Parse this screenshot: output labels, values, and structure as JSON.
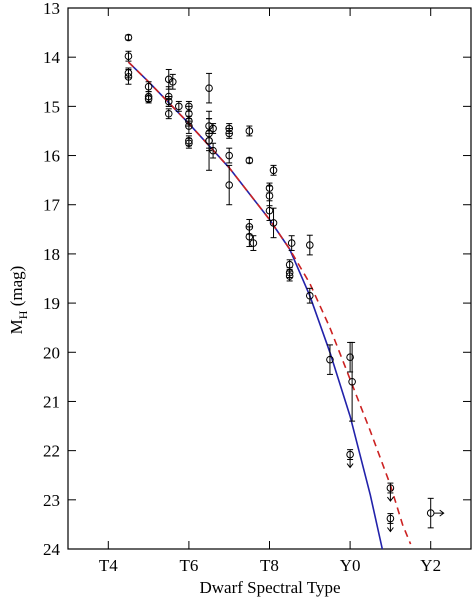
{
  "chart_data": {
    "type": "scatter",
    "x_label": "Dwarf Spectral Type",
    "y_label": {
      "main": "M",
      "sub": "H",
      "rest": " (mag)"
    },
    "xlim": [
      3,
      13
    ],
    "ylim": [
      24,
      13
    ],
    "xticks": [
      {
        "value": 4,
        "label": "T4"
      },
      {
        "value": 6,
        "label": "T6"
      },
      {
        "value": 8,
        "label": "T8"
      },
      {
        "value": 10,
        "label": "Y0"
      },
      {
        "value": 12,
        "label": "Y2"
      }
    ],
    "yticks": [
      13,
      14,
      15,
      16,
      17,
      18,
      19,
      20,
      21,
      22,
      23,
      24
    ],
    "series": [
      {
        "color": "#000000",
        "x": [
          4.5,
          4.5,
          4.5,
          4.5,
          5.0,
          5.0,
          5.0,
          5.5,
          5.5,
          5.6,
          5.5,
          5.5,
          5.75,
          6.0,
          6.0,
          6.0,
          6.0,
          6.0,
          6.0,
          6.5,
          6.5,
          6.5,
          6.5,
          6.5,
          6.6,
          6.6,
          7.0,
          7.0,
          7.0,
          7.0,
          7.5,
          7.5,
          7.5,
          7.5,
          7.6,
          8.0,
          8.0,
          8.1,
          8.0,
          8.1,
          8.55,
          8.5,
          8.5,
          8.5,
          9.0,
          9.0,
          9.5,
          10.0,
          10.05,
          10.0,
          11.0,
          11.0,
          12.0
        ],
        "values": [
          13.6,
          13.98,
          14.32,
          14.4,
          14.6,
          14.85,
          14.8,
          15.15,
          14.45,
          14.5,
          14.8,
          14.9,
          15.0,
          15.0,
          15.15,
          15.3,
          15.4,
          15.7,
          15.75,
          14.63,
          15.4,
          15.55,
          15.7,
          15.7,
          15.45,
          15.9,
          15.45,
          15.55,
          16.6,
          16.0,
          15.5,
          16.1,
          17.45,
          17.65,
          17.78,
          16.66,
          16.82,
          16.3,
          17.12,
          17.37,
          17.78,
          18.22,
          18.38,
          18.45,
          17.82,
          18.85,
          20.15,
          20.1,
          20.6,
          22.08,
          22.76,
          23.38,
          23.27
        ],
        "errors": [
          0.05,
          0.1,
          0.1,
          0.15,
          0.1,
          0.08,
          0.1,
          0.1,
          0.2,
          0.15,
          0.2,
          0.1,
          0.1,
          0.1,
          0.15,
          0.1,
          0.15,
          0.1,
          0.1,
          0.3,
          0.15,
          0.3,
          0.2,
          0.6,
          0.1,
          0.15,
          0.1,
          0.1,
          0.4,
          0.15,
          0.1,
          0.05,
          0.15,
          0.2,
          0.15,
          0.1,
          0.2,
          0.1,
          0.2,
          0.3,
          0.15,
          0.1,
          0.1,
          0.1,
          0.2,
          0.15,
          0.3,
          0.3,
          0.8,
          0.1,
          0.1,
          0.1,
          0.3
        ],
        "arrows": [
          null,
          null,
          null,
          null,
          null,
          null,
          null,
          null,
          null,
          null,
          null,
          null,
          null,
          null,
          null,
          null,
          null,
          null,
          null,
          null,
          null,
          null,
          null,
          null,
          null,
          null,
          null,
          null,
          null,
          null,
          null,
          null,
          null,
          null,
          null,
          null,
          null,
          null,
          null,
          null,
          null,
          null,
          null,
          null,
          null,
          null,
          null,
          null,
          null,
          "down",
          "down",
          "down",
          "right"
        ]
      }
    ],
    "curves": [
      {
        "color": "#2222aa",
        "dash": false,
        "x": [
          4.5,
          5,
          6,
          7,
          8,
          8.5,
          9,
          9.5,
          10,
          10.5,
          10.8
        ],
        "values": [
          14.1,
          14.5,
          15.35,
          16.25,
          17.3,
          17.9,
          18.85,
          20.0,
          21.3,
          22.9,
          24.0
        ]
      },
      {
        "color": "#cc2222",
        "dash": true,
        "x": [
          4.5,
          5,
          6,
          7,
          8,
          8.5,
          9,
          9.5,
          10,
          10.5,
          11,
          11.3,
          11.5
        ],
        "values": [
          14.1,
          14.5,
          15.35,
          16.25,
          17.3,
          17.9,
          18.6,
          19.5,
          20.55,
          21.6,
          22.7,
          23.5,
          23.9
        ]
      }
    ]
  }
}
